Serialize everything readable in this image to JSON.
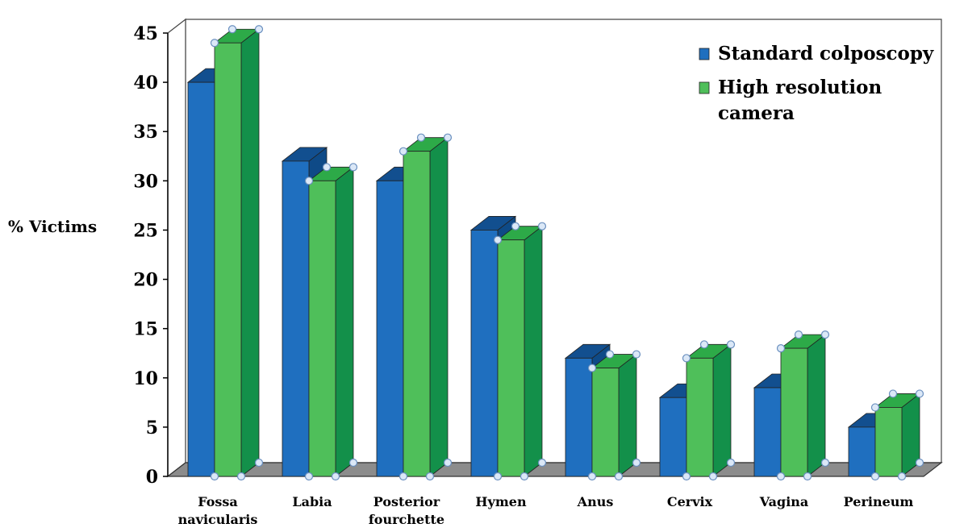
{
  "chart_data": {
    "type": "bar",
    "title": "",
    "xlabel": "",
    "ylabel": "% Victims",
    "ylim": [
      0,
      45
    ],
    "yticks": [
      "0",
      "5",
      "10",
      "15",
      "20",
      "25",
      "30",
      "35",
      "40",
      "45"
    ],
    "categories": [
      [
        "Fossa",
        "navicularis"
      ],
      [
        "Labia"
      ],
      [
        "Posterior",
        "fourchette"
      ],
      [
        "Hymen"
      ],
      [
        "Anus"
      ],
      [
        "Cervix"
      ],
      [
        "Vagina"
      ],
      [
        "Perineum"
      ]
    ],
    "series": [
      {
        "name": "Standard colposcopy",
        "legend_lines": [
          "Standard colposcopy"
        ],
        "values": [
          40,
          32,
          30,
          25,
          12,
          8,
          9,
          5
        ],
        "color": "#1F6FBF",
        "top_color": "#124F8F"
      },
      {
        "name": "High resolution camera",
        "legend_lines": [
          "High resolution",
          "camera"
        ],
        "values": [
          44,
          30,
          33,
          24,
          11,
          12,
          13,
          7
        ],
        "color": "#4FBF5A",
        "top_color": "#2DAA48",
        "side_color": "#13904A"
      }
    ],
    "grid": false,
    "legend_position": "top-right",
    "style": "3d-clustered-bar"
  }
}
